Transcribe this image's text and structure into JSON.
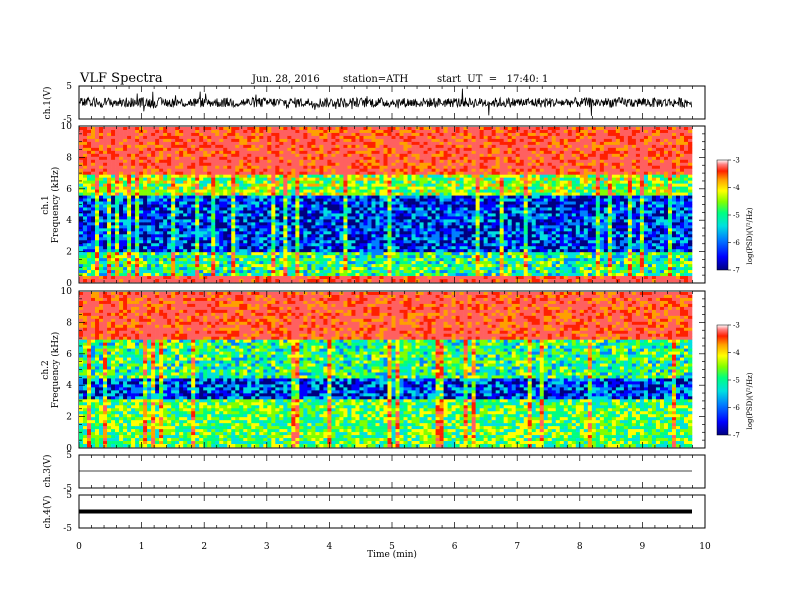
{
  "header": {
    "title": "VLF  Spectra",
    "date": "Jun. 28, 2016",
    "station": "station=ATH",
    "start_ut": "start  UT  =   17:40: 1"
  },
  "colors": {
    "colormap": [
      "#000080",
      "#0000ff",
      "#0080ff",
      "#00e0e0",
      "#00ff80",
      "#80ff00",
      "#ffff00",
      "#ffa000",
      "#ff2000",
      "#ff6060",
      "#ffffff"
    ],
    "trace": "#000000",
    "axis": "#000000"
  },
  "chart_data": [
    {
      "type": "line",
      "panel": "ch1-waveform",
      "ylabel": "ch.1(V)",
      "ylim": [
        -5,
        5
      ],
      "yticks": [
        "5",
        "-5"
      ],
      "x_range_min": [
        0,
        9.8
      ],
      "description_values": "noisy broadband waveform centred near 0 V, amplitude about ±1.5 V"
    },
    {
      "type": "heatmap",
      "panel": "ch1-spectrogram",
      "ylabel_top": "ch.1",
      "ylabel": "Frequency  (kHz)",
      "ylim": [
        0,
        10
      ],
      "yticks": [
        "0",
        "2",
        "4",
        "6",
        "8",
        "10"
      ],
      "colorbar": {
        "label": "log(PSD)(V²/Hz)",
        "ticks": [
          "-3",
          "-4",
          "-5",
          "-6",
          "-7"
        ],
        "range": [
          -7,
          -3
        ]
      },
      "bands": [
        {
          "f": [
            0,
            0.3
          ],
          "value": -3.2
        },
        {
          "f": [
            0.3,
            2
          ],
          "value": -5.2
        },
        {
          "f": [
            2,
            5.5
          ],
          "value": -6.3
        },
        {
          "f": [
            5.5,
            7
          ],
          "value": -4.8
        },
        {
          "f": [
            7,
            10
          ],
          "value": -3.4
        }
      ]
    },
    {
      "type": "heatmap",
      "panel": "ch2-spectrogram",
      "ylabel_top": "ch.2",
      "ylabel": "Frequency  (kHz)",
      "ylim": [
        0,
        10
      ],
      "yticks": [
        "0",
        "2",
        "4",
        "6",
        "8",
        "10"
      ],
      "colorbar": {
        "label": "log(PSD)(V²/Hz)",
        "ticks": [
          "-3",
          "-4",
          "-5",
          "-6",
          "-7"
        ],
        "range": [
          -7,
          -3
        ]
      },
      "bands": [
        {
          "f": [
            0,
            3
          ],
          "value": -5.0
        },
        {
          "f": [
            3,
            4.5
          ],
          "value": -6.2
        },
        {
          "f": [
            4.5,
            7
          ],
          "value": -5.2
        },
        {
          "f": [
            7,
            10
          ],
          "value": -3.4
        }
      ]
    },
    {
      "type": "line",
      "panel": "ch3-waveform",
      "ylabel": "ch.3(V)",
      "ylim": [
        -5,
        5
      ],
      "yticks": [
        "5",
        "-5"
      ],
      "values_constant": 0
    },
    {
      "type": "line",
      "panel": "ch4-waveform",
      "ylabel": "ch.4(V)",
      "ylim": [
        -5,
        5
      ],
      "yticks": [
        "5",
        "-5"
      ],
      "values_constant": 0
    }
  ],
  "xaxis": {
    "label": "Time  (min)",
    "ticks": [
      "0",
      "1",
      "2",
      "3",
      "4",
      "5",
      "6",
      "7",
      "8",
      "9",
      "10"
    ],
    "range": [
      0,
      10
    ]
  }
}
